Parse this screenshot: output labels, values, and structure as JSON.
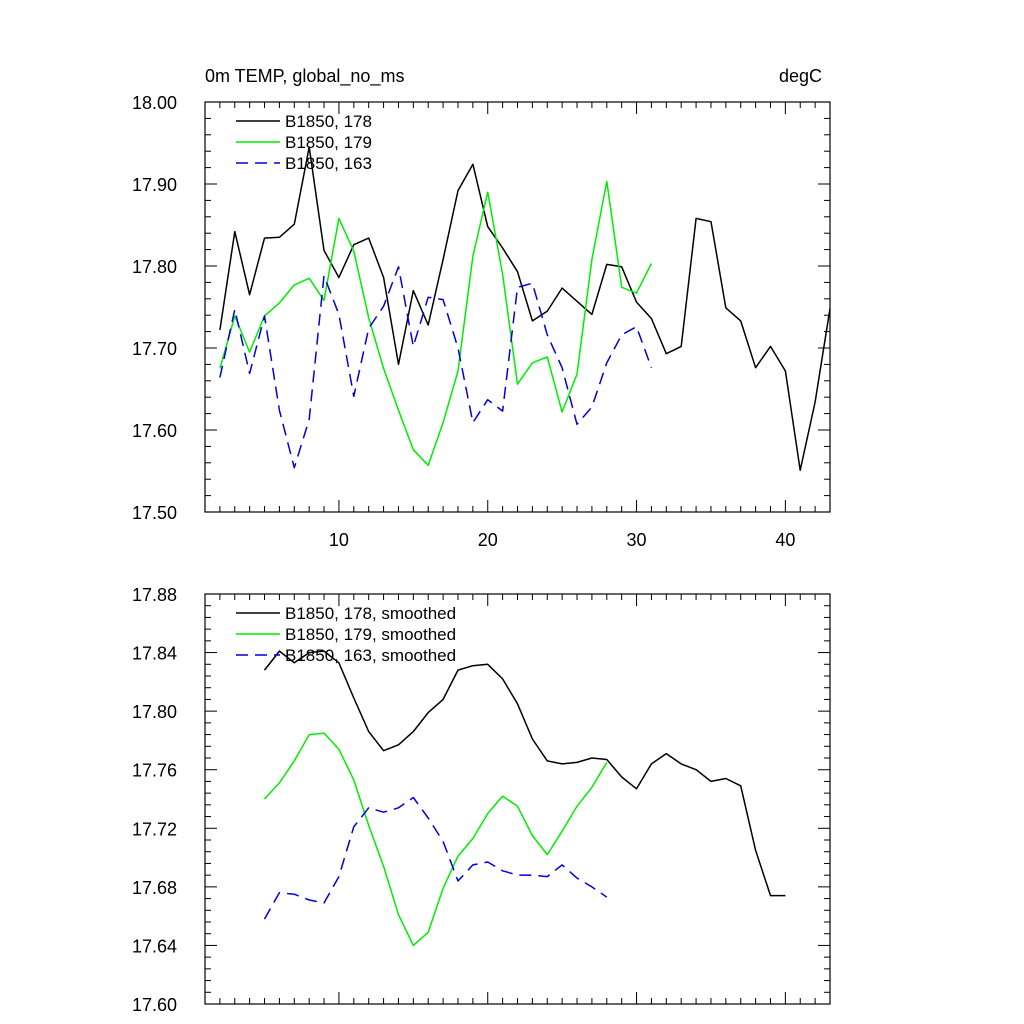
{
  "chart_data": [
    {
      "type": "line",
      "title": "0m TEMP, global_no_ms",
      "units": "degC",
      "xlim": [
        1,
        43
      ],
      "ylim": [
        17.5,
        18.0
      ],
      "yticks": [
        "17.50",
        "17.60",
        "17.70",
        "17.80",
        "17.90",
        "18.00"
      ],
      "xticks": [
        "10",
        "20",
        "30",
        "40"
      ],
      "legend_position": "top-left",
      "series": [
        {
          "name": "B1850, 178",
          "color": "#000000",
          "dash": "solid",
          "x": [
            2,
            3,
            4,
            5,
            6,
            7,
            8,
            9,
            10,
            11,
            12,
            13,
            14,
            15,
            16,
            17,
            18,
            19,
            20,
            21,
            22,
            23,
            24,
            25,
            26,
            27,
            28,
            29,
            30,
            31,
            32,
            33,
            34,
            35,
            36,
            37,
            38,
            39,
            40,
            41,
            42,
            43
          ],
          "y": [
            17.722,
            17.842,
            17.765,
            17.834,
            17.835,
            17.851,
            17.945,
            17.819,
            17.786,
            17.826,
            17.834,
            17.786,
            17.68,
            17.77,
            17.728,
            17.808,
            17.892,
            17.924,
            17.848,
            17.822,
            17.793,
            17.733,
            17.745,
            17.773,
            17.757,
            17.741,
            17.802,
            17.799,
            17.756,
            17.736,
            17.693,
            17.702,
            17.858,
            17.854,
            17.749,
            17.733,
            17.676,
            17.702,
            17.672,
            17.551,
            17.634,
            17.748
          ]
        },
        {
          "name": "B1850, 179",
          "color": "#00ee00",
          "dash": "solid",
          "x": [
            2,
            3,
            4,
            5,
            6,
            7,
            8,
            9,
            10,
            11,
            12,
            13,
            14,
            15,
            16,
            17,
            18,
            19,
            20,
            21,
            22,
            23,
            24,
            25,
            26,
            27,
            28,
            29,
            30,
            31
          ],
          "y": [
            17.675,
            17.739,
            17.695,
            17.739,
            17.755,
            17.777,
            17.785,
            17.758,
            17.858,
            17.818,
            17.737,
            17.675,
            17.624,
            17.576,
            17.557,
            17.609,
            17.672,
            17.812,
            17.89,
            17.79,
            17.656,
            17.682,
            17.689,
            17.622,
            17.668,
            17.808,
            17.903,
            17.774,
            17.767,
            17.803
          ]
        },
        {
          "name": "B1850, 163",
          "color": "#0000dd",
          "dash": "dashed",
          "x": [
            2,
            3,
            4,
            5,
            6,
            7,
            8,
            9,
            10,
            11,
            12,
            13,
            14,
            15,
            16,
            17,
            18,
            19,
            20,
            21,
            22,
            23,
            24,
            25,
            26,
            27,
            28,
            29,
            30,
            31
          ],
          "y": [
            17.664,
            17.747,
            17.669,
            17.739,
            17.624,
            17.554,
            17.613,
            17.788,
            17.741,
            17.641,
            17.724,
            17.751,
            17.799,
            17.702,
            17.762,
            17.759,
            17.7,
            17.609,
            17.637,
            17.623,
            17.774,
            17.779,
            17.716,
            17.676,
            17.607,
            17.628,
            17.682,
            17.716,
            17.726,
            17.676
          ]
        }
      ]
    },
    {
      "type": "line",
      "xlim": [
        1,
        43
      ],
      "ylim": [
        17.6,
        17.88
      ],
      "yticks": [
        "17.60",
        "17.64",
        "17.68",
        "17.72",
        "17.76",
        "17.80",
        "17.84",
        "17.88"
      ],
      "legend_position": "top-left",
      "series": [
        {
          "name": "B1850, 178, smoothed",
          "color": "#000000",
          "dash": "solid",
          "x": [
            5,
            6,
            7,
            8,
            9,
            10,
            11,
            12,
            13,
            14,
            15,
            16,
            17,
            18,
            19,
            20,
            21,
            22,
            23,
            24,
            25,
            26,
            27,
            28,
            29,
            30,
            31,
            32,
            33,
            34,
            35,
            36,
            37,
            38,
            39,
            40
          ],
          "y": [
            17.828,
            17.841,
            17.833,
            17.84,
            17.841,
            17.833,
            17.809,
            17.786,
            17.773,
            17.777,
            17.786,
            17.799,
            17.808,
            17.828,
            17.831,
            17.832,
            17.822,
            17.805,
            17.781,
            17.766,
            17.764,
            17.765,
            17.768,
            17.767,
            17.755,
            17.747,
            17.764,
            17.771,
            17.764,
            17.76,
            17.752,
            17.754,
            17.749,
            17.705,
            17.674,
            17.674
          ]
        },
        {
          "name": "B1850, 179, smoothed",
          "color": "#00ee00",
          "dash": "solid",
          "x": [
            5,
            6,
            7,
            8,
            9,
            10,
            11,
            12,
            13,
            14,
            15,
            16,
            17,
            18,
            19,
            20,
            21,
            22,
            23,
            24,
            25,
            26,
            27,
            28
          ],
          "y": [
            17.74,
            17.751,
            17.766,
            17.784,
            17.785,
            17.774,
            17.753,
            17.722,
            17.694,
            17.661,
            17.64,
            17.649,
            17.679,
            17.701,
            17.713,
            17.73,
            17.742,
            17.735,
            17.715,
            17.702,
            17.718,
            17.735,
            17.748,
            17.765
          ]
        },
        {
          "name": "B1850, 163, smoothed",
          "color": "#0000dd",
          "dash": "dashed",
          "x": [
            5,
            6,
            7,
            8,
            9,
            10,
            11,
            12,
            13,
            14,
            15,
            16,
            17,
            18,
            19,
            20,
            21,
            22,
            23,
            24,
            25,
            26,
            27,
            28
          ],
          "y": [
            17.658,
            17.676,
            17.675,
            17.671,
            17.669,
            17.687,
            17.721,
            17.734,
            17.731,
            17.734,
            17.741,
            17.727,
            17.711,
            17.684,
            17.695,
            17.697,
            17.691,
            17.688,
            17.688,
            17.687,
            17.695,
            17.686,
            17.68,
            17.673
          ]
        }
      ]
    }
  ]
}
